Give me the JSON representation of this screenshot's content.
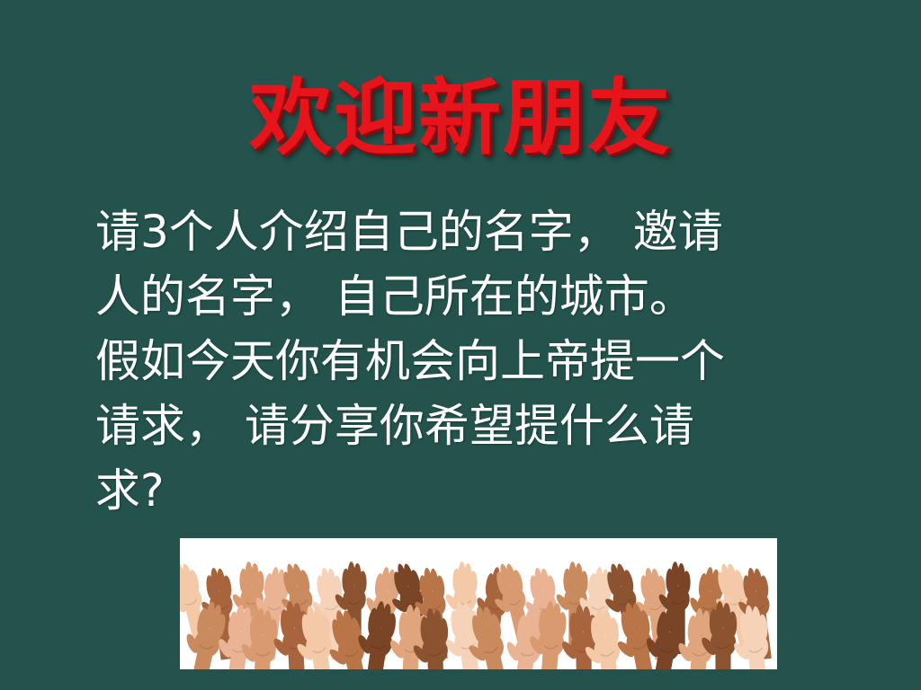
{
  "slide": {
    "title": "欢迎新朋友",
    "body": "请3个人介绍自己的名字， 邀请\n人的名字， 自己所在的城市。\n假如今天你有机会向上帝提一个\n请求， 请分享你希望提什么请\n求?",
    "image": {
      "icon": "raised-hands-image"
    }
  },
  "colors": {
    "background": "#23534c",
    "title": "#e8141c",
    "body_text": "#ffffff",
    "image_background": "#ffffff"
  }
}
